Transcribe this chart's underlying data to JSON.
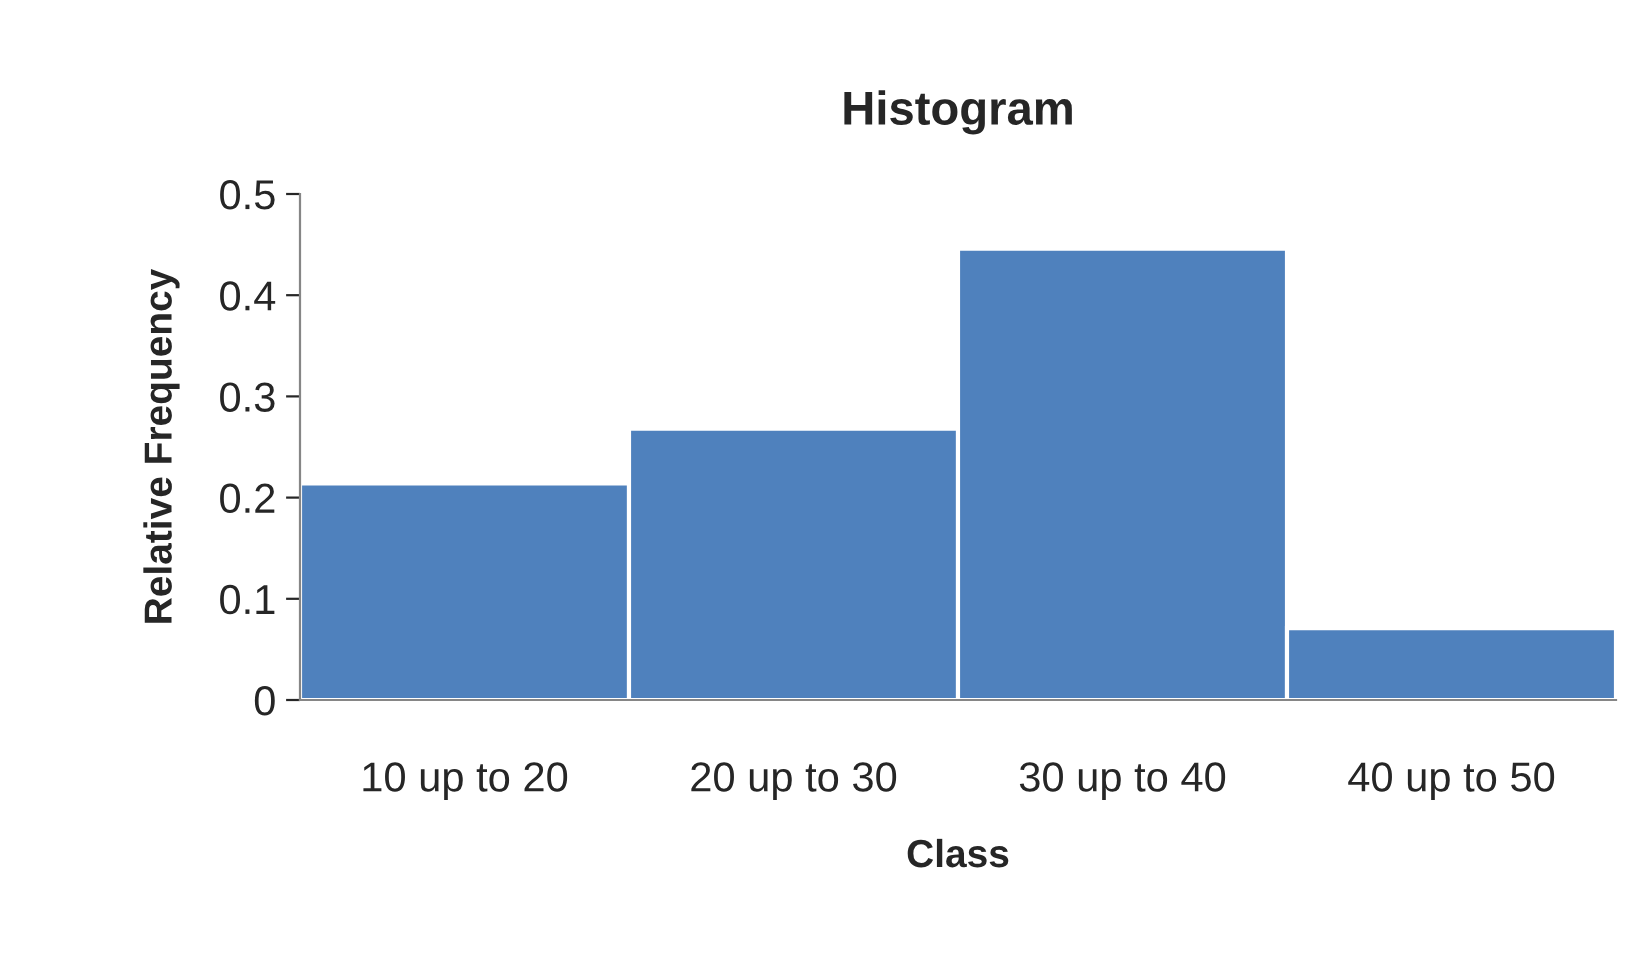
{
  "chart_data": {
    "type": "bar",
    "title": "Histogram",
    "xlabel": "Class",
    "ylabel": "Relative Frequency",
    "categories": [
      "10 up to 20",
      "20 up to 30",
      "30 up to 40",
      "40 up to 50"
    ],
    "values": [
      0.214,
      0.268,
      0.446,
      0.071
    ],
    "color": "#4f81bd",
    "ylim": [
      0,
      0.5
    ],
    "yticks": [
      0,
      0.1,
      0.2,
      0.3,
      0.4,
      0.5
    ],
    "grid": false,
    "legend": false
  }
}
